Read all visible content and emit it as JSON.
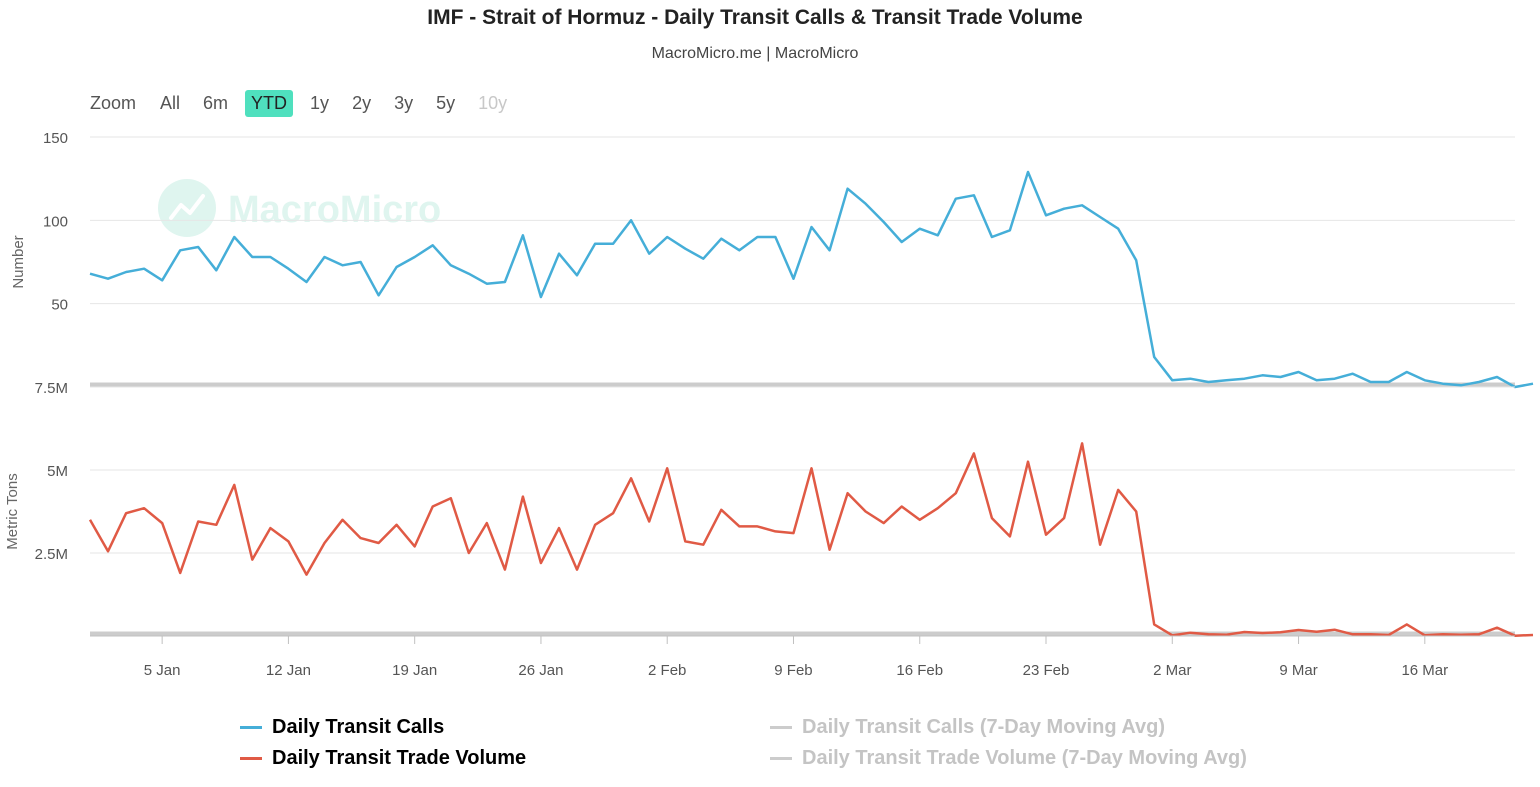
{
  "title": "IMF - Strait of Hormuz - Daily Transit Calls & Transit Trade Volume",
  "subtitle": "MacroMicro.me | MacroMicro",
  "watermark": "MacroMicro",
  "zoom": {
    "label": "Zoom",
    "buttons": [
      "All",
      "6m",
      "YTD",
      "1y",
      "2y",
      "3y",
      "5y",
      "10y"
    ],
    "active": "YTD",
    "disabled": [
      "10y"
    ]
  },
  "colors": {
    "calls": "#45aed8",
    "volume": "#e05a45",
    "moving_avg": "#cccccc",
    "watermark": "#dff5ef"
  },
  "legend": [
    {
      "label": "Daily Transit Calls",
      "color": "#45aed8",
      "active": true
    },
    {
      "label": "Daily Transit Trade Volume",
      "color": "#e05a45",
      "active": true
    },
    {
      "label": "Daily Transit Calls (7-Day Moving Avg)",
      "color": "#cccccc",
      "active": false
    },
    {
      "label": "Daily Transit Trade Volume (7-Day Moving Avg)",
      "color": "#cccccc",
      "active": false
    }
  ],
  "chart_data": {
    "type": "line",
    "x_tick_labels": [
      "5 Jan",
      "12 Jan",
      "19 Jan",
      "26 Jan",
      "2 Feb",
      "9 Feb",
      "16 Feb",
      "23 Feb",
      "2 Mar",
      "9 Mar",
      "16 Mar"
    ],
    "x_tick_dates": [
      "2026-01-05",
      "2026-01-12",
      "2026-01-19",
      "2026-01-26",
      "2026-02-02",
      "2026-02-09",
      "2026-02-16",
      "2026-02-23",
      "2026-03-02",
      "2026-03-09",
      "2026-03-16"
    ],
    "x_range": [
      "2026-01-01",
      "2026-03-21"
    ],
    "grid": true,
    "legend_position": "bottom",
    "panels": [
      {
        "ylabel": "Number",
        "ylim": [
          0,
          150
        ],
        "y_tick_labels": [
          "50",
          "100",
          "150"
        ],
        "y_tick_values": [
          50,
          100,
          150
        ],
        "series": [
          {
            "name": "Daily Transit Calls",
            "color": "#45aed8",
            "start": "2026-01-01",
            "values": [
              68,
              65,
              69,
              71,
              64,
              82,
              84,
              70,
              90,
              78,
              78,
              71,
              63,
              78,
              73,
              75,
              55,
              72,
              78,
              85,
              73,
              68,
              62,
              63,
              91,
              54,
              80,
              67,
              86,
              86,
              100,
              80,
              90,
              83,
              77,
              89,
              82,
              90,
              90,
              65,
              96,
              82,
              119,
              110,
              99,
              87,
              95,
              91,
              113,
              115,
              90,
              94,
              129,
              103,
              107,
              109,
              102,
              95,
              76,
              18,
              4,
              5,
              3,
              4,
              5,
              7,
              6,
              9,
              4,
              5,
              8,
              3,
              3,
              9,
              4,
              2,
              1,
              3,
              6,
              0,
              2
            ]
          },
          {
            "name": "Daily Transit Calls (7-Day Moving Avg)",
            "color": "#cccccc",
            "hidden": true
          }
        ]
      },
      {
        "ylabel": "Metric Tons",
        "ylim": [
          0,
          7500000
        ],
        "y_tick_labels": [
          "2.5M",
          "5M",
          "7.5M"
        ],
        "y_tick_values": [
          2500000,
          5000000,
          7500000
        ],
        "series": [
          {
            "name": "Daily Transit Trade Volume",
            "color": "#e05a45",
            "start": "2026-01-01",
            "values": [
              3500000,
              2550000,
              3700000,
              3850000,
              3400000,
              1900000,
              3450000,
              3350000,
              4550000,
              2300000,
              3250000,
              2850000,
              1850000,
              2800000,
              3500000,
              2950000,
              2800000,
              3350000,
              2700000,
              3900000,
              4150000,
              2500000,
              3400000,
              2000000,
              4200000,
              2200000,
              3250000,
              2000000,
              3350000,
              3700000,
              4750000,
              3450000,
              5050000,
              2850000,
              2750000,
              3800000,
              3300000,
              3300000,
              3150000,
              3100000,
              5050000,
              2600000,
              4300000,
              3750000,
              3400000,
              3900000,
              3500000,
              3850000,
              4300000,
              5500000,
              3550000,
              3000000,
              5250000,
              3050000,
              3550000,
              5800000,
              2750000,
              4400000,
              3750000,
              350000,
              20000,
              100000,
              50000,
              40000,
              120000,
              90000,
              110000,
              180000,
              130000,
              190000,
              50000,
              50000,
              30000,
              350000,
              20000,
              50000,
              40000,
              50000,
              250000,
              10000,
              30000
            ]
          },
          {
            "name": "Daily Transit Trade Volume (7-Day Moving Avg)",
            "color": "#cccccc",
            "hidden": true
          }
        ]
      }
    ]
  }
}
